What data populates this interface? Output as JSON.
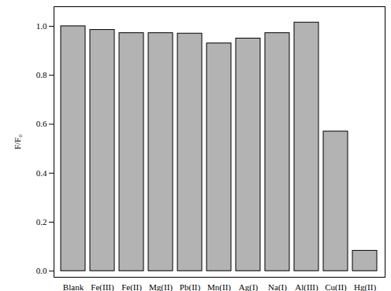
{
  "chart_data": {
    "type": "bar",
    "y_label": "F/F₀",
    "categories": [
      "Blank",
      "Fe(III)",
      "Fe(II)",
      "Mg(II)",
      "Pb(II)",
      "Mn(II)",
      "Ag(I)",
      "Na(I)",
      "Al(III)",
      "Cu(II)",
      "Hg(II)"
    ],
    "values": [
      1.0,
      0.985,
      0.972,
      0.972,
      0.97,
      0.93,
      0.95,
      0.972,
      1.015,
      0.57,
      0.083
    ],
    "color": "#b3b3b3",
    "ylim": [
      -0.025,
      1.08
    ],
    "yticks": [
      {
        "value": 0,
        "label": "0.0"
      },
      {
        "value": 0.2,
        "label": "0.2"
      },
      {
        "value": 0.4,
        "label": "0.4"
      },
      {
        "value": 0.6,
        "label": "0.6"
      },
      {
        "value": 0.8,
        "label": "0.8"
      },
      {
        "value": 1,
        "label": "1.0"
      }
    ],
    "grid": false
  }
}
